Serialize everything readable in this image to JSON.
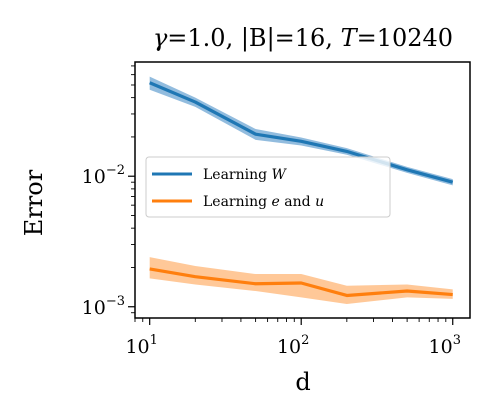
{
  "chart_data": {
    "type": "line",
    "title_parts": {
      "gamma_symbol": "γ",
      "gamma_value": "=1.0, ",
      "B_text": "|B|",
      "B_value": "=16, ",
      "T_symbol": "T",
      "T_value": "=10240"
    },
    "xlabel": "d",
    "ylabel": "Error",
    "x_scale": "log",
    "y_scale": "log",
    "xlim": [
      8,
      1300
    ],
    "ylim": [
      0.00082,
      0.075
    ],
    "x_ticks": [
      {
        "value": 10,
        "base": "10",
        "exp": "1"
      },
      {
        "value": 100,
        "base": "10",
        "exp": "2"
      },
      {
        "value": 1000,
        "base": "10",
        "exp": "3"
      }
    ],
    "y_ticks": [
      {
        "value": 0.001,
        "base": "10",
        "exp": "−3"
      },
      {
        "value": 0.01,
        "base": "10",
        "exp": "−2"
      }
    ],
    "grid": false,
    "legend_position": "center-left",
    "x": [
      10,
      20,
      50,
      100,
      200,
      500,
      1000
    ],
    "series": [
      {
        "name_text": "Learning ",
        "name_italic": "W",
        "color": "#1f77b4",
        "band_color": "#7fb0d8",
        "values": [
          0.052,
          0.037,
          0.021,
          0.0185,
          0.0155,
          0.0112,
          0.009
        ],
        "lower": [
          0.046,
          0.034,
          0.019,
          0.0172,
          0.0146,
          0.0106,
          0.0085
        ],
        "upper": [
          0.058,
          0.04,
          0.023,
          0.0198,
          0.0164,
          0.0118,
          0.0095
        ]
      },
      {
        "name_parts": [
          {
            "text": "Learning ",
            "italic": false
          },
          {
            "text": "e",
            "italic": true
          },
          {
            "text": " and ",
            "italic": false
          },
          {
            "text": "u",
            "italic": true
          }
        ],
        "color": "#ff7f0e",
        "band_color": "#ffbe86",
        "values": [
          0.00195,
          0.0017,
          0.0015,
          0.00152,
          0.00122,
          0.00132,
          0.00124
        ],
        "lower": [
          0.00165,
          0.00148,
          0.00132,
          0.00118,
          0.00105,
          0.00118,
          0.00115
        ],
        "upper": [
          0.0024,
          0.00205,
          0.00178,
          0.00178,
          0.00145,
          0.00148,
          0.00136
        ]
      }
    ]
  }
}
